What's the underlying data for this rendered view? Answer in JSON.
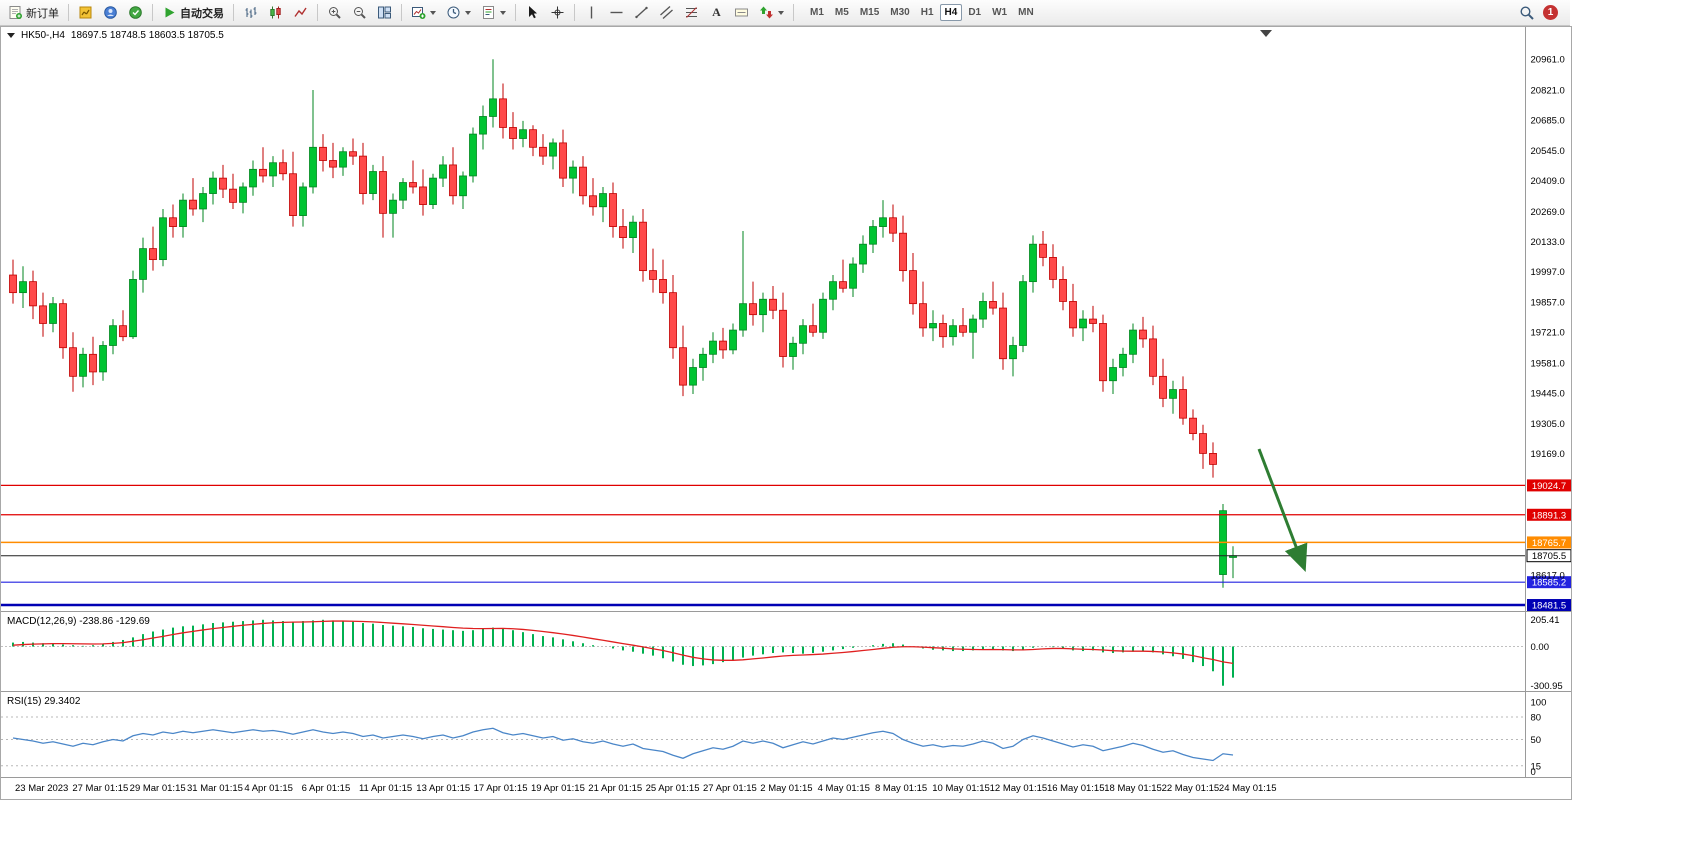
{
  "toolbar": {
    "new_order_label": "新订单",
    "auto_trading_label": "自动交易",
    "text_tool_glyph": "A",
    "timeframes": {
      "items": [
        "M1",
        "M5",
        "M15",
        "M30",
        "H1",
        "H4",
        "D1",
        "W1",
        "MN"
      ],
      "active": "H4"
    },
    "notification_count": "1",
    "icons": [
      "new-order-icon",
      "market-watch-icon",
      "navigator-icon",
      "terminal-icon",
      "play-icon",
      "bar-chart-icon",
      "candlestick-chart-icon",
      "line-chart-icon",
      "zoom-in-icon",
      "zoom-out-icon",
      "tile-windows-icon",
      "new-chart-icon",
      "periods-icon",
      "templates-icon",
      "cursor-icon",
      "crosshair-icon",
      "vertical-line-icon",
      "horizontal-line-icon",
      "trendline-icon",
      "channel-icon",
      "fibonacci-icon",
      "text-icon",
      "label-icon",
      "arrows-icon",
      "search-icon",
      "notification-badge"
    ]
  },
  "chart_header": {
    "symbol_period": "HK50-,H4",
    "ohlc": "18697.5 18748.5 18603.5 18705.5"
  },
  "chart_data": {
    "type": "candlestick",
    "symbol": "HK50-",
    "period": "H4",
    "open": 18697.5,
    "high": 18748.5,
    "low": 18603.5,
    "close": 18705.5,
    "up_color": "#00c432",
    "up_stroke": "#00861f",
    "down_color": "#ff4a4a",
    "down_stroke": "#c00000",
    "y_axis_labels": [
      "20961.0",
      "20821.0",
      "20685.0",
      "20545.0",
      "20409.0",
      "20269.0",
      "20133.0",
      "19997.0",
      "19857.0",
      "19721.0",
      "19581.0",
      "19445.0",
      "19305.0",
      "19169.0",
      "18617.0"
    ],
    "price_lines": [
      {
        "label": "19024.7",
        "value": 19024.7,
        "color": "#e00000",
        "width": 1.2
      },
      {
        "label": "18891.3",
        "value": 18891.3,
        "color": "#e00000",
        "width": 1.2
      },
      {
        "label": "18765.7",
        "value": 18765.7,
        "color": "#ff8c00",
        "width": 1.5
      },
      {
        "label": "18705.5",
        "value": 18705.5,
        "color": "#202020",
        "width": 1,
        "style": "bid"
      },
      {
        "label": "18585.2",
        "value": 18585.2,
        "color": "#2222e0",
        "width": 1.2
      },
      {
        "label": "18481.5",
        "value": 18481.5,
        "color": "#0000b4",
        "width": 2.5
      }
    ],
    "x_labels": [
      "23 Mar 2023",
      "27 Mar 01:15",
      "29 Mar 01:15",
      "31 Mar 01:15",
      "4 Apr 01:15",
      "6 Apr 01:15",
      "11 Apr 01:15",
      "13 Apr 01:15",
      "17 Apr 01:15",
      "19 Apr 01:15",
      "21 Apr 01:15",
      "25 Apr 01:15",
      "27 Apr 01:15",
      "2 May 01:15",
      "4 May 01:15",
      "8 May 01:15",
      "10 May 01:15",
      "12 May 01:15",
      "16 May 01:15",
      "18 May 01:15",
      "22 May 01:15",
      "24 May 01:15"
    ],
    "annotation_arrow": {
      "color": "#2e7d32",
      "direction": "down-right"
    },
    "candles": [
      [
        19980,
        20050,
        19850,
        19900
      ],
      [
        19900,
        20020,
        19830,
        19950
      ],
      [
        19950,
        20000,
        19780,
        19840
      ],
      [
        19840,
        19900,
        19700,
        19760
      ],
      [
        19760,
        19880,
        19720,
        19850
      ],
      [
        19850,
        19870,
        19600,
        19650
      ],
      [
        19650,
        19720,
        19450,
        19520
      ],
      [
        19520,
        19650,
        19470,
        19620
      ],
      [
        19620,
        19700,
        19480,
        19540
      ],
      [
        19540,
        19680,
        19500,
        19660
      ],
      [
        19660,
        19780,
        19620,
        19750
      ],
      [
        19750,
        19820,
        19680,
        19700
      ],
      [
        19700,
        20000,
        19690,
        19960
      ],
      [
        19960,
        20150,
        19900,
        20100
      ],
      [
        20100,
        20200,
        20000,
        20050
      ],
      [
        20050,
        20280,
        20020,
        20240
      ],
      [
        20240,
        20300,
        20150,
        20200
      ],
      [
        20200,
        20350,
        20150,
        20320
      ],
      [
        20320,
        20420,
        20250,
        20280
      ],
      [
        20280,
        20380,
        20220,
        20350
      ],
      [
        20350,
        20450,
        20300,
        20420
      ],
      [
        20420,
        20480,
        20330,
        20370
      ],
      [
        20370,
        20440,
        20280,
        20310
      ],
      [
        20310,
        20400,
        20260,
        20380
      ],
      [
        20380,
        20500,
        20340,
        20460
      ],
      [
        20460,
        20560,
        20400,
        20430
      ],
      [
        20430,
        20520,
        20380,
        20490
      ],
      [
        20490,
        20550,
        20410,
        20440
      ],
      [
        20440,
        20540,
        20200,
        20250
      ],
      [
        20250,
        20400,
        20200,
        20380
      ],
      [
        20380,
        20820,
        20350,
        20560
      ],
      [
        20560,
        20620,
        20450,
        20500
      ],
      [
        20500,
        20580,
        20420,
        20470
      ],
      [
        20470,
        20560,
        20430,
        20540
      ],
      [
        20540,
        20600,
        20480,
        20520
      ],
      [
        20520,
        20580,
        20300,
        20350
      ],
      [
        20350,
        20480,
        20320,
        20450
      ],
      [
        20450,
        20520,
        20150,
        20260
      ],
      [
        20260,
        20350,
        20150,
        20320
      ],
      [
        20320,
        20420,
        20280,
        20400
      ],
      [
        20400,
        20500,
        20350,
        20380
      ],
      [
        20380,
        20460,
        20250,
        20300
      ],
      [
        20300,
        20440,
        20280,
        20420
      ],
      [
        20420,
        20520,
        20380,
        20480
      ],
      [
        20480,
        20560,
        20300,
        20340
      ],
      [
        20340,
        20450,
        20280,
        20430
      ],
      [
        20430,
        20650,
        20400,
        20620
      ],
      [
        20620,
        20750,
        20550,
        20700
      ],
      [
        20700,
        20960,
        20650,
        20780
      ],
      [
        20780,
        20850,
        20600,
        20650
      ],
      [
        20650,
        20720,
        20550,
        20600
      ],
      [
        20600,
        20680,
        20560,
        20640
      ],
      [
        20640,
        20660,
        20520,
        20560
      ],
      [
        20560,
        20620,
        20480,
        20520
      ],
      [
        20520,
        20600,
        20460,
        20580
      ],
      [
        20580,
        20640,
        20380,
        20420
      ],
      [
        20420,
        20500,
        20350,
        20470
      ],
      [
        20470,
        20520,
        20300,
        20340
      ],
      [
        20340,
        20420,
        20250,
        20290
      ],
      [
        20290,
        20380,
        20220,
        20350
      ],
      [
        20350,
        20400,
        20150,
        20200
      ],
      [
        20200,
        20280,
        20100,
        20150
      ],
      [
        20150,
        20250,
        20080,
        20220
      ],
      [
        20220,
        20280,
        19950,
        20000
      ],
      [
        20000,
        20100,
        19900,
        19960
      ],
      [
        19960,
        20050,
        19850,
        19900
      ],
      [
        19900,
        19980,
        19600,
        19650
      ],
      [
        19650,
        19750,
        19430,
        19480
      ],
      [
        19480,
        19600,
        19440,
        19560
      ],
      [
        19560,
        19650,
        19500,
        19620
      ],
      [
        19620,
        19720,
        19580,
        19680
      ],
      [
        19680,
        19740,
        19600,
        19640
      ],
      [
        19640,
        19760,
        19620,
        19730
      ],
      [
        19730,
        20180,
        19700,
        19850
      ],
      [
        19850,
        19950,
        19750,
        19800
      ],
      [
        19800,
        19900,
        19720,
        19870
      ],
      [
        19870,
        19930,
        19780,
        19820
      ],
      [
        19820,
        19900,
        19560,
        19610
      ],
      [
        19610,
        19700,
        19550,
        19670
      ],
      [
        19670,
        19780,
        19620,
        19750
      ],
      [
        19750,
        19850,
        19700,
        19720
      ],
      [
        19720,
        19900,
        19690,
        19870
      ],
      [
        19870,
        19980,
        19820,
        19950
      ],
      [
        19950,
        20050,
        19900,
        19920
      ],
      [
        19920,
        20060,
        19880,
        20030
      ],
      [
        20030,
        20160,
        19990,
        20120
      ],
      [
        20120,
        20230,
        20080,
        20200
      ],
      [
        20200,
        20320,
        20150,
        20240
      ],
      [
        20240,
        20300,
        20130,
        20170
      ],
      [
        20170,
        20250,
        19950,
        20000
      ],
      [
        20000,
        20080,
        19800,
        19850
      ],
      [
        19850,
        19950,
        19700,
        19740
      ],
      [
        19740,
        19820,
        19680,
        19760
      ],
      [
        19760,
        19800,
        19650,
        19700
      ],
      [
        19700,
        19780,
        19660,
        19750
      ],
      [
        19750,
        19830,
        19700,
        19720
      ],
      [
        19720,
        19800,
        19600,
        19780
      ],
      [
        19780,
        19900,
        19740,
        19860
      ],
      [
        19860,
        19950,
        19800,
        19830
      ],
      [
        19830,
        19900,
        19550,
        19600
      ],
      [
        19600,
        19700,
        19520,
        19660
      ],
      [
        19660,
        19980,
        19630,
        19950
      ],
      [
        19950,
        20160,
        19900,
        20120
      ],
      [
        20120,
        20180,
        20020,
        20060
      ],
      [
        20060,
        20120,
        19920,
        19960
      ],
      [
        19960,
        20020,
        19820,
        19860
      ],
      [
        19860,
        19940,
        19700,
        19740
      ],
      [
        19740,
        19820,
        19680,
        19780
      ],
      [
        19780,
        19840,
        19720,
        19760
      ],
      [
        19760,
        19800,
        19450,
        19500
      ],
      [
        19500,
        19600,
        19440,
        19560
      ],
      [
        19560,
        19650,
        19520,
        19620
      ],
      [
        19620,
        19760,
        19580,
        19730
      ],
      [
        19730,
        19790,
        19650,
        19690
      ],
      [
        19690,
        19750,
        19480,
        19520
      ],
      [
        19520,
        19600,
        19380,
        19420
      ],
      [
        19420,
        19500,
        19350,
        19460
      ],
      [
        19460,
        19520,
        19300,
        19330
      ],
      [
        19330,
        19370,
        19230,
        19260
      ],
      [
        19260,
        19300,
        19100,
        19170
      ],
      [
        19170,
        19220,
        19060,
        19120
      ],
      [
        18620,
        18940,
        18560,
        18910
      ],
      [
        18697.5,
        18748.5,
        18603.5,
        18705.5
      ]
    ],
    "indicators": {
      "macd": {
        "label": "MACD(12,26,9) -238.86 -129.69",
        "macd_value": -238.86,
        "signal_value": -129.69,
        "scale": [
          "205.41",
          "0.00",
          "-300.95"
        ],
        "histogram_color": "#00b050",
        "signal_color": "#e02020",
        "histogram": [
          30,
          35,
          30,
          25,
          20,
          15,
          10,
          5,
          10,
          20,
          35,
          50,
          70,
          95,
          115,
          130,
          145,
          155,
          160,
          170,
          180,
          185,
          190,
          195,
          200,
          205,
          200,
          195,
          190,
          195,
          200,
          205,
          200,
          195,
          190,
          180,
          175,
          165,
          160,
          155,
          150,
          140,
          135,
          130,
          125,
          120,
          125,
          135,
          145,
          140,
          125,
          110,
          95,
          80,
          70,
          55,
          40,
          25,
          10,
          0,
          -15,
          -30,
          -40,
          -55,
          -70,
          -90,
          -115,
          -140,
          -150,
          -145,
          -135,
          -120,
          -105,
          -85,
          -70,
          -60,
          -50,
          -45,
          -50,
          -55,
          -50,
          -40,
          -30,
          -20,
          -10,
          0,
          10,
          20,
          25,
          15,
          0,
          -15,
          -25,
          -30,
          -35,
          -35,
          -30,
          -25,
          -20,
          -30,
          -35,
          -25,
          -10,
          0,
          -5,
          -15,
          -30,
          -35,
          -30,
          -45,
          -50,
          -45,
          -40,
          -35,
          -45,
          -60,
          -75,
          -95,
          -120,
          -150,
          -190,
          -300.95,
          -238.86
        ],
        "signal": [
          10,
          15,
          18,
          20,
          22,
          22,
          21,
          20,
          19,
          20,
          24,
          30,
          40,
          52,
          65,
          78,
          92,
          105,
          116,
          127,
          137,
          146,
          155,
          163,
          170,
          177,
          182,
          185,
          187,
          188,
          190,
          193,
          195,
          195,
          194,
          192,
          189,
          184,
          179,
          174,
          169,
          163,
          157,
          152,
          146,
          141,
          138,
          137,
          138,
          139,
          136,
          131,
          124,
          115,
          106,
          96,
          85,
          73,
          60,
          48,
          35,
          22,
          10,
          -3,
          -17,
          -31,
          -48,
          -66,
          -83,
          -95,
          -103,
          -106,
          -106,
          -102,
          -95,
          -88,
          -80,
          -73,
          -68,
          -65,
          -62,
          -58,
          -52,
          -46,
          -39,
          -31,
          -23,
          -14,
          -6,
          -2,
          -2,
          -5,
          -9,
          -13,
          -18,
          -21,
          -23,
          -24,
          -23,
          -24,
          -26,
          -26,
          -23,
          -18,
          -15,
          -15,
          -18,
          -21,
          -23,
          -27,
          -32,
          -35,
          -36,
          -36,
          -38,
          -42,
          -49,
          -58,
          -70,
          -86,
          -100,
          -118,
          -129.69
        ]
      },
      "rsi": {
        "label": "RSI(15) 29.3402",
        "current_value": 29.3402,
        "scale": [
          "100",
          "80",
          "50",
          "15",
          "0"
        ],
        "levels": [
          80,
          50,
          15
        ],
        "line_color": "#4a86c8",
        "values": [
          52,
          50,
          48,
          45,
          47,
          44,
          41,
          45,
          43,
          47,
          50,
          48,
          55,
          58,
          56,
          60,
          58,
          61,
          59,
          61,
          63,
          61,
          59,
          61,
          63,
          61,
          62,
          60,
          57,
          60,
          63,
          60,
          58,
          60,
          58,
          54,
          56,
          52,
          54,
          56,
          54,
          51,
          54,
          56,
          52,
          55,
          60,
          63,
          65,
          59,
          56,
          58,
          55,
          52,
          54,
          49,
          51,
          47,
          45,
          48,
          44,
          41,
          44,
          38,
          36,
          34,
          29,
          25,
          31,
          35,
          39,
          37,
          41,
          48,
          45,
          48,
          45,
          39,
          43,
          47,
          44,
          48,
          52,
          50,
          53,
          56,
          59,
          61,
          58,
          50,
          45,
          41,
          43,
          40,
          42,
          41,
          44,
          48,
          45,
          38,
          41,
          50,
          55,
          52,
          48,
          44,
          40,
          43,
          41,
          35,
          38,
          41,
          45,
          42,
          37,
          33,
          35,
          30,
          26,
          24,
          22,
          31,
          29.34
        ]
      }
    }
  }
}
